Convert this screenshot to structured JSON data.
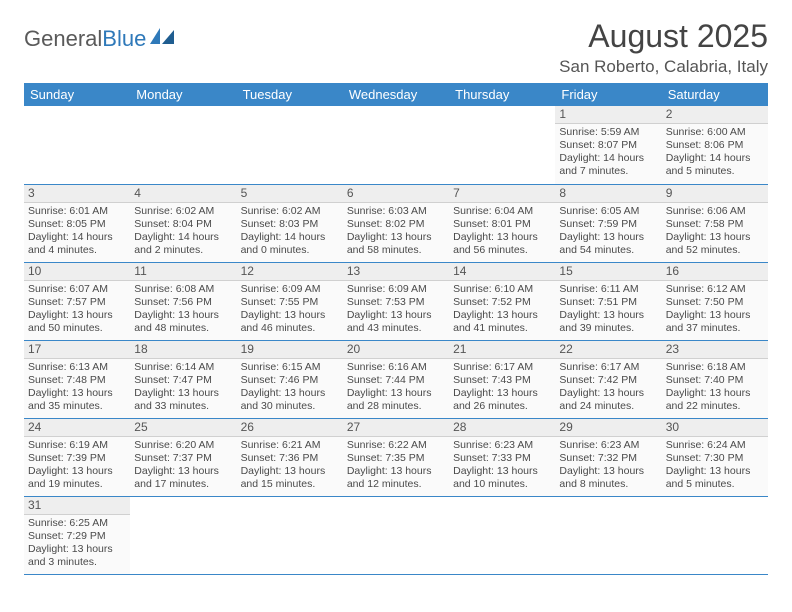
{
  "brand": {
    "part1": "General",
    "part2": "Blue"
  },
  "title": "August 2025",
  "location": "San Roberto, Calabria, Italy",
  "colors": {
    "header_bg": "#3a87c8",
    "header_text": "#ffffff",
    "rule": "#3a87c8",
    "daynum_bg": "#eeeeee",
    "cell_bg": "#fafafa"
  },
  "weekdays": [
    "Sunday",
    "Monday",
    "Tuesday",
    "Wednesday",
    "Thursday",
    "Friday",
    "Saturday"
  ],
  "weeks": [
    [
      null,
      null,
      null,
      null,
      null,
      {
        "n": "1",
        "sr": "Sunrise: 5:59 AM",
        "ss": "Sunset: 8:07 PM",
        "d1": "Daylight: 14 hours",
        "d2": "and 7 minutes."
      },
      {
        "n": "2",
        "sr": "Sunrise: 6:00 AM",
        "ss": "Sunset: 8:06 PM",
        "d1": "Daylight: 14 hours",
        "d2": "and 5 minutes."
      }
    ],
    [
      {
        "n": "3",
        "sr": "Sunrise: 6:01 AM",
        "ss": "Sunset: 8:05 PM",
        "d1": "Daylight: 14 hours",
        "d2": "and 4 minutes."
      },
      {
        "n": "4",
        "sr": "Sunrise: 6:02 AM",
        "ss": "Sunset: 8:04 PM",
        "d1": "Daylight: 14 hours",
        "d2": "and 2 minutes."
      },
      {
        "n": "5",
        "sr": "Sunrise: 6:02 AM",
        "ss": "Sunset: 8:03 PM",
        "d1": "Daylight: 14 hours",
        "d2": "and 0 minutes."
      },
      {
        "n": "6",
        "sr": "Sunrise: 6:03 AM",
        "ss": "Sunset: 8:02 PM",
        "d1": "Daylight: 13 hours",
        "d2": "and 58 minutes."
      },
      {
        "n": "7",
        "sr": "Sunrise: 6:04 AM",
        "ss": "Sunset: 8:01 PM",
        "d1": "Daylight: 13 hours",
        "d2": "and 56 minutes."
      },
      {
        "n": "8",
        "sr": "Sunrise: 6:05 AM",
        "ss": "Sunset: 7:59 PM",
        "d1": "Daylight: 13 hours",
        "d2": "and 54 minutes."
      },
      {
        "n": "9",
        "sr": "Sunrise: 6:06 AM",
        "ss": "Sunset: 7:58 PM",
        "d1": "Daylight: 13 hours",
        "d2": "and 52 minutes."
      }
    ],
    [
      {
        "n": "10",
        "sr": "Sunrise: 6:07 AM",
        "ss": "Sunset: 7:57 PM",
        "d1": "Daylight: 13 hours",
        "d2": "and 50 minutes."
      },
      {
        "n": "11",
        "sr": "Sunrise: 6:08 AM",
        "ss": "Sunset: 7:56 PM",
        "d1": "Daylight: 13 hours",
        "d2": "and 48 minutes."
      },
      {
        "n": "12",
        "sr": "Sunrise: 6:09 AM",
        "ss": "Sunset: 7:55 PM",
        "d1": "Daylight: 13 hours",
        "d2": "and 46 minutes."
      },
      {
        "n": "13",
        "sr": "Sunrise: 6:09 AM",
        "ss": "Sunset: 7:53 PM",
        "d1": "Daylight: 13 hours",
        "d2": "and 43 minutes."
      },
      {
        "n": "14",
        "sr": "Sunrise: 6:10 AM",
        "ss": "Sunset: 7:52 PM",
        "d1": "Daylight: 13 hours",
        "d2": "and 41 minutes."
      },
      {
        "n": "15",
        "sr": "Sunrise: 6:11 AM",
        "ss": "Sunset: 7:51 PM",
        "d1": "Daylight: 13 hours",
        "d2": "and 39 minutes."
      },
      {
        "n": "16",
        "sr": "Sunrise: 6:12 AM",
        "ss": "Sunset: 7:50 PM",
        "d1": "Daylight: 13 hours",
        "d2": "and 37 minutes."
      }
    ],
    [
      {
        "n": "17",
        "sr": "Sunrise: 6:13 AM",
        "ss": "Sunset: 7:48 PM",
        "d1": "Daylight: 13 hours",
        "d2": "and 35 minutes."
      },
      {
        "n": "18",
        "sr": "Sunrise: 6:14 AM",
        "ss": "Sunset: 7:47 PM",
        "d1": "Daylight: 13 hours",
        "d2": "and 33 minutes."
      },
      {
        "n": "19",
        "sr": "Sunrise: 6:15 AM",
        "ss": "Sunset: 7:46 PM",
        "d1": "Daylight: 13 hours",
        "d2": "and 30 minutes."
      },
      {
        "n": "20",
        "sr": "Sunrise: 6:16 AM",
        "ss": "Sunset: 7:44 PM",
        "d1": "Daylight: 13 hours",
        "d2": "and 28 minutes."
      },
      {
        "n": "21",
        "sr": "Sunrise: 6:17 AM",
        "ss": "Sunset: 7:43 PM",
        "d1": "Daylight: 13 hours",
        "d2": "and 26 minutes."
      },
      {
        "n": "22",
        "sr": "Sunrise: 6:17 AM",
        "ss": "Sunset: 7:42 PM",
        "d1": "Daylight: 13 hours",
        "d2": "and 24 minutes."
      },
      {
        "n": "23",
        "sr": "Sunrise: 6:18 AM",
        "ss": "Sunset: 7:40 PM",
        "d1": "Daylight: 13 hours",
        "d2": "and 22 minutes."
      }
    ],
    [
      {
        "n": "24",
        "sr": "Sunrise: 6:19 AM",
        "ss": "Sunset: 7:39 PM",
        "d1": "Daylight: 13 hours",
        "d2": "and 19 minutes."
      },
      {
        "n": "25",
        "sr": "Sunrise: 6:20 AM",
        "ss": "Sunset: 7:37 PM",
        "d1": "Daylight: 13 hours",
        "d2": "and 17 minutes."
      },
      {
        "n": "26",
        "sr": "Sunrise: 6:21 AM",
        "ss": "Sunset: 7:36 PM",
        "d1": "Daylight: 13 hours",
        "d2": "and 15 minutes."
      },
      {
        "n": "27",
        "sr": "Sunrise: 6:22 AM",
        "ss": "Sunset: 7:35 PM",
        "d1": "Daylight: 13 hours",
        "d2": "and 12 minutes."
      },
      {
        "n": "28",
        "sr": "Sunrise: 6:23 AM",
        "ss": "Sunset: 7:33 PM",
        "d1": "Daylight: 13 hours",
        "d2": "and 10 minutes."
      },
      {
        "n": "29",
        "sr": "Sunrise: 6:23 AM",
        "ss": "Sunset: 7:32 PM",
        "d1": "Daylight: 13 hours",
        "d2": "and 8 minutes."
      },
      {
        "n": "30",
        "sr": "Sunrise: 6:24 AM",
        "ss": "Sunset: 7:30 PM",
        "d1": "Daylight: 13 hours",
        "d2": "and 5 minutes."
      }
    ],
    [
      {
        "n": "31",
        "sr": "Sunrise: 6:25 AM",
        "ss": "Sunset: 7:29 PM",
        "d1": "Daylight: 13 hours",
        "d2": "and 3 minutes."
      },
      null,
      null,
      null,
      null,
      null,
      null
    ]
  ]
}
